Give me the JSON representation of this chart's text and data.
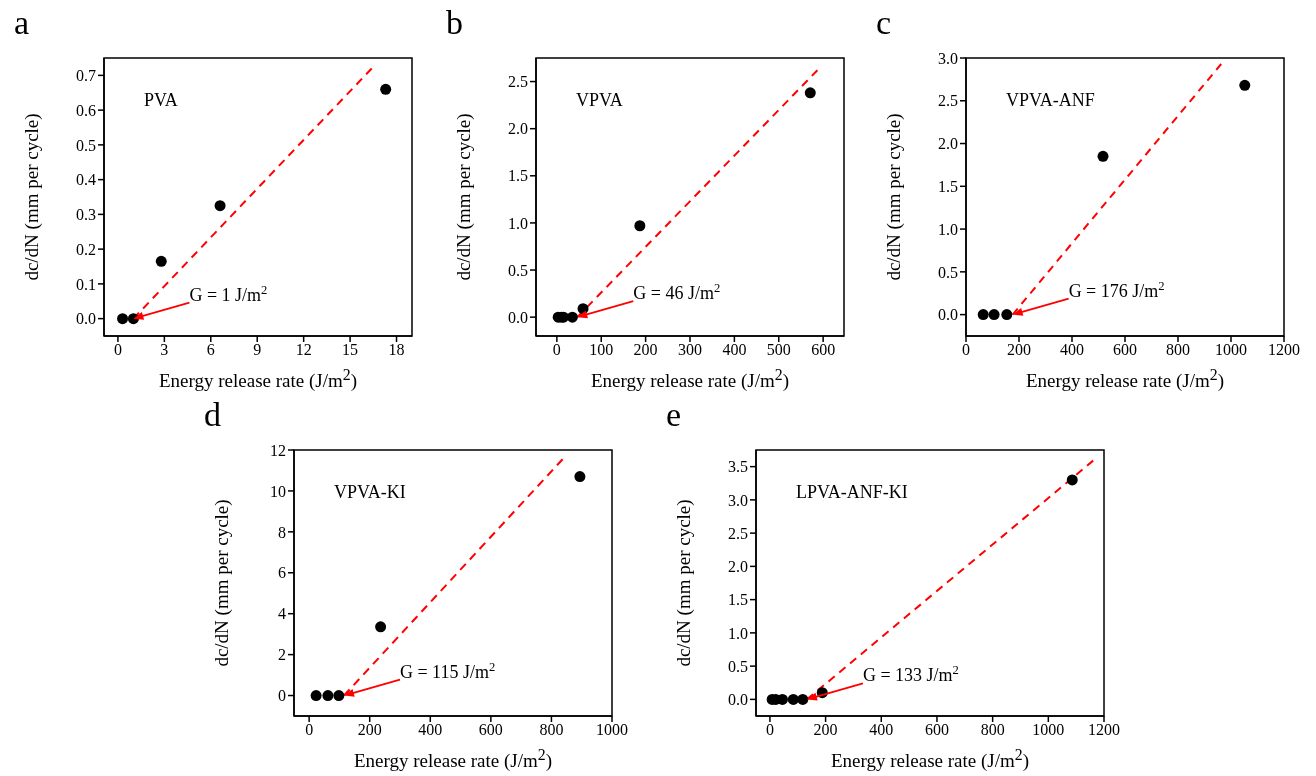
{
  "chart_data": [
    {
      "type": "scatter",
      "title": "a",
      "xlabel": "Energy release rate (J/m$^{2}$)",
      "ylabel": "dc/dN (mm per cycle)",
      "xlim": [
        -0.9,
        19
      ],
      "xticks": [
        0,
        3,
        6,
        9,
        12,
        15,
        18
      ],
      "ylim": [
        -0.05,
        0.75
      ],
      "yticks": [
        {
          "value": 0,
          "label": "0.0"
        },
        0.1,
        0.2,
        0.3,
        0.4,
        0.5,
        0.6,
        0.7
      ],
      "annotations": [
        "PVA",
        "G = 1 J/m$^{2}$"
      ],
      "series": [
        {
          "type": "scatter",
          "marker": "circle",
          "color": "#000000",
          "x": [
            0.3,
            1.0,
            2.8,
            6.6,
            17.3
          ],
          "values": [
            0,
            0,
            0.165,
            0.325,
            0.66
          ]
        },
        {
          "type": "line",
          "color": "#ff0000",
          "line_style": "dashed",
          "x": [
            1,
            16.4
          ],
          "values": [
            0,
            0.72
          ]
        }
      ]
    },
    {
      "type": "scatter",
      "title": "b",
      "xlabel": "Energy release rate (J/m$^{2}$)",
      "ylabel": "dc/dN (mm per cycle)",
      "xlim": [
        -47,
        647
      ],
      "xticks": [
        0,
        100,
        200,
        300,
        400,
        500,
        600
      ],
      "ylim": [
        -0.2,
        2.75
      ],
      "yticks": [
        {
          "value": 0,
          "label": "0.0"
        },
        0.5,
        {
          "value": 1,
          "label": "1.0"
        },
        1.5,
        {
          "value": 2,
          "label": "2.0"
        },
        2.5
      ],
      "annotations": [
        "VPVA",
        "G = 46 J/m$^{2}$"
      ],
      "series": [
        {
          "type": "scatter",
          "marker": "circle",
          "color": "#000000",
          "x": [
            3,
            10,
            15,
            35,
            59,
            187,
            571
          ],
          "values": [
            0,
            0,
            0,
            0,
            0.09,
            0.97,
            2.38
          ]
        },
        {
          "type": "line",
          "color": "#ff0000",
          "line_style": "dashed",
          "x": [
            46,
            587
          ],
          "values": [
            0,
            2.62
          ]
        }
      ]
    },
    {
      "type": "scatter",
      "title": "c",
      "xlabel": "Energy release rate (J/m$^{2}$)",
      "ylabel": "dc/dN (mm per cycle)",
      "xlim": [
        0,
        1200
      ],
      "xticks": [
        0,
        200,
        400,
        600,
        800,
        1000,
        1200
      ],
      "ylim": [
        -0.25,
        3.0
      ],
      "yticks": [
        {
          "value": 0,
          "label": "0.0"
        },
        0.5,
        {
          "value": 1,
          "label": "1.0"
        },
        1.5,
        {
          "value": 2,
          "label": "2.0"
        },
        2.5,
        {
          "value": 3,
          "label": "3.0"
        }
      ],
      "annotations": [
        "VPVA-ANF",
        "G = 176 J/m$^{2}$"
      ],
      "series": [
        {
          "type": "scatter",
          "marker": "circle",
          "color": "#000000",
          "x": [
            65,
            106,
            154,
            517,
            1052
          ],
          "values": [
            0,
            0,
            0,
            1.85,
            2.68
          ]
        },
        {
          "type": "line",
          "color": "#ff0000",
          "line_style": "dashed",
          "x": [
            176,
            963
          ],
          "values": [
            0,
            2.93
          ]
        }
      ]
    },
    {
      "type": "scatter",
      "title": "d",
      "xlabel": "Energy release rate (J/m$^{2}$)",
      "ylabel": "dc/dN (mm per cycle)",
      "xlim": [
        -50,
        1000
      ],
      "xticks": [
        0,
        200,
        400,
        600,
        800,
        1000
      ],
      "ylim": [
        -1,
        12
      ],
      "yticks": [
        0,
        2,
        4,
        6,
        8,
        10,
        12
      ],
      "annotations": [
        "VPVA-KI",
        "G = 115 J/m$^{2}$"
      ],
      "series": [
        {
          "type": "scatter",
          "marker": "circle",
          "color": "#000000",
          "x": [
            23,
            62,
            98,
            236,
            894
          ],
          "values": [
            0,
            0,
            0,
            3.36,
            10.7
          ]
        },
        {
          "type": "line",
          "color": "#ff0000",
          "line_style": "dashed",
          "x": [
            115,
            837
          ],
          "values": [
            0,
            11.55
          ]
        }
      ]
    },
    {
      "type": "scatter",
      "title": "e",
      "xlabel": "Energy release rate (J/m$^{2}$)",
      "ylabel": "dc/dN (mm per cycle)",
      "xlim": [
        -50,
        1200
      ],
      "xticks": [
        0,
        200,
        400,
        600,
        800,
        1000,
        1200
      ],
      "ylim": [
        -0.25,
        3.75
      ],
      "yticks": [
        {
          "value": 0,
          "label": "0.0"
        },
        0.5,
        {
          "value": 1,
          "label": "1.0"
        },
        1.5,
        {
          "value": 2,
          "label": "2.0"
        },
        2.5,
        {
          "value": 3,
          "label": "3.0"
        },
        3.5
      ],
      "annotations": [
        "LPVA-ANF-KI",
        "G = 133 J/m$^{2}$"
      ],
      "series": [
        {
          "type": "scatter",
          "marker": "circle",
          "color": "#000000",
          "x": [
            8,
            21,
            45,
            84,
            118,
            188,
            1086
          ],
          "values": [
            0,
            0,
            0,
            0,
            0,
            0.1,
            3.3
          ]
        },
        {
          "type": "line",
          "color": "#ff0000",
          "line_style": "dashed",
          "x": [
            133,
            1161
          ],
          "values": [
            0,
            3.59
          ]
        }
      ]
    }
  ]
}
